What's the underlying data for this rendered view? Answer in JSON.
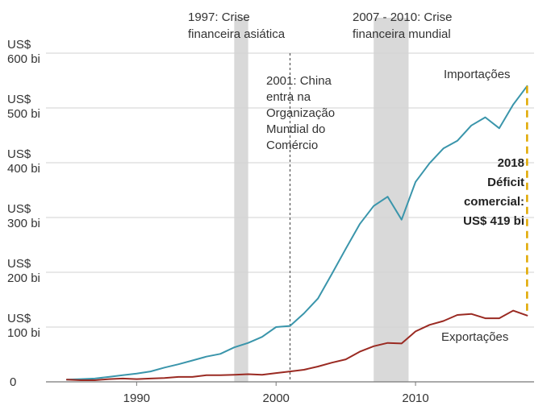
{
  "chart_data": {
    "type": "line",
    "title": "",
    "xlabel": "",
    "ylabel": "",
    "xlim": [
      1983.5,
      2018.5
    ],
    "ylim": [
      0,
      600
    ],
    "grid": true,
    "xticks": [
      "1990",
      "2000",
      "2010"
    ],
    "yticks": [
      {
        "value": 0,
        "line1": "0",
        "line2": ""
      },
      {
        "value": 100,
        "line1": "US$",
        "line2": "100 bi"
      },
      {
        "value": 200,
        "line1": "US$",
        "line2": "200 bi"
      },
      {
        "value": 300,
        "line1": "US$",
        "line2": "300 bi"
      },
      {
        "value": 400,
        "line1": "US$",
        "line2": "400 bi"
      },
      {
        "value": 500,
        "line1": "US$",
        "line2": "500 bi"
      },
      {
        "value": 600,
        "line1": "US$",
        "line2": "600 bi"
      }
    ],
    "series": [
      {
        "name": "Importações",
        "color": "#3a95ab",
        "x": [
          1985,
          1986,
          1987,
          1988,
          1989,
          1990,
          1991,
          1992,
          1993,
          1994,
          1995,
          1996,
          1997,
          1998,
          1999,
          2000,
          2001,
          2002,
          2003,
          2004,
          2005,
          2006,
          2007,
          2008,
          2009,
          2010,
          2011,
          2012,
          2013,
          2014,
          2015,
          2016,
          2017,
          2018
        ],
        "values": [
          4,
          5,
          6,
          9,
          12,
          15,
          19,
          26,
          32,
          39,
          46,
          51,
          63,
          71,
          82,
          100,
          102,
          125,
          152,
          197,
          243,
          288,
          321,
          338,
          296,
          365,
          399,
          426,
          440,
          468,
          483,
          463,
          506,
          540
        ]
      },
      {
        "name": "Exportações",
        "color": "#9a2a22",
        "x": [
          1985,
          1986,
          1987,
          1988,
          1989,
          1990,
          1991,
          1992,
          1993,
          1994,
          1995,
          1996,
          1997,
          1998,
          1999,
          2000,
          2001,
          2002,
          2003,
          2004,
          2005,
          2006,
          2007,
          2008,
          2009,
          2010,
          2011,
          2012,
          2013,
          2014,
          2015,
          2016,
          2017,
          2018
        ],
        "values": [
          4,
          3,
          3,
          5,
          6,
          5,
          6,
          7,
          9,
          9,
          12,
          12,
          13,
          14,
          13,
          16,
          19,
          22,
          28,
          35,
          41,
          55,
          65,
          71,
          70,
          92,
          104,
          111,
          122,
          124,
          116,
          116,
          130,
          121
        ]
      }
    ],
    "shaded_periods": [
      {
        "start": 1997,
        "end": 1998,
        "label1": "1997: Crise",
        "label2": "financeira asiática"
      },
      {
        "start": 2007,
        "end": 2009.5,
        "label1": "2007 - 2010: Crise",
        "label2": "financeira mundial"
      }
    ],
    "event": {
      "x": 2001,
      "lines": [
        "2001: China",
        "entra na",
        "Organização",
        "Mundial do",
        "Comércio"
      ]
    },
    "deficit": {
      "x": 2018,
      "from": 121,
      "to": 540,
      "color": "#e0a800",
      "lines": [
        "2018",
        "Déficit",
        "comercial:",
        "US$ 419 bi"
      ]
    }
  }
}
